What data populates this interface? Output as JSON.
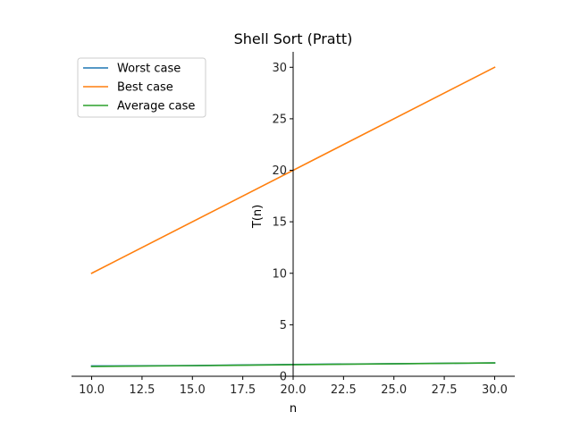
{
  "chart_data": {
    "type": "line",
    "title": "Shell Sort (Pratt)",
    "xlabel": "n",
    "ylabel": "T(n)",
    "xlim": [
      9.0,
      31.0
    ],
    "ylim": [
      0,
      31.5
    ],
    "x_ticks": [
      10.0,
      12.5,
      15.0,
      17.5,
      20.0,
      22.5,
      25.0,
      27.5,
      30.0
    ],
    "x_tick_labels": [
      "10.0",
      "12.5",
      "15.0",
      "17.5",
      "20.0",
      "22.5",
      "25.0",
      "27.5",
      "30.0"
    ],
    "y_ticks": [
      0,
      5,
      10,
      15,
      20,
      25,
      30
    ],
    "y_tick_labels": [
      "0",
      "5",
      "10",
      "15",
      "20",
      "25",
      "30"
    ],
    "y_axis_at_x": 20.0,
    "grid": false,
    "legend_position": "top-left",
    "series": [
      {
        "name": "Worst case",
        "color": "#1f77b4",
        "x": [
          10,
          15,
          20,
          25,
          30
        ],
        "y": [
          1.0,
          1.04,
          1.15,
          1.22,
          1.3
        ]
      },
      {
        "name": "Best case",
        "color": "#ff7f0e",
        "x": [
          10,
          30
        ],
        "y": [
          10,
          30
        ]
      },
      {
        "name": "Average case",
        "color": "#2ca02c",
        "x": [
          10,
          15,
          20,
          25,
          30
        ],
        "y": [
          0.95,
          1.03,
          1.12,
          1.21,
          1.3
        ]
      }
    ]
  }
}
